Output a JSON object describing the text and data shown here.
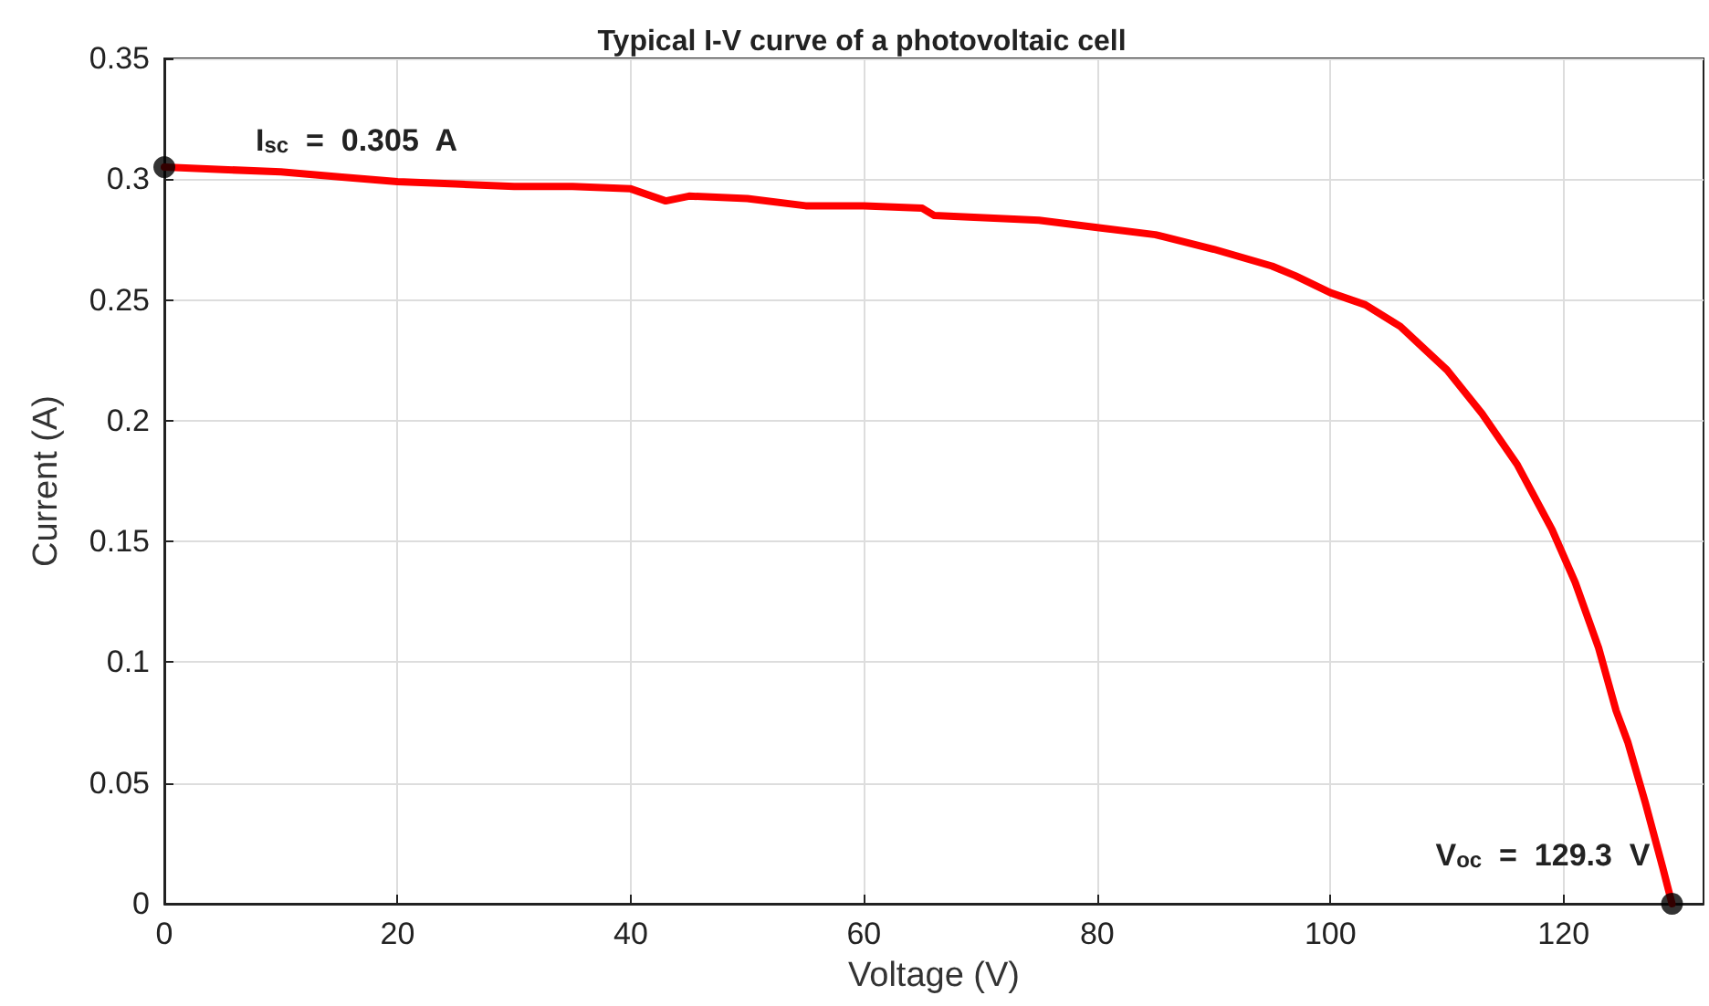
{
  "chart_data": {
    "type": "line",
    "title": "Typical I-V curve of a photovoltaic cell",
    "xlabel": "Voltage (V)",
    "ylabel": "Current (A)",
    "series": [
      {
        "color": "#ff0000",
        "marker": "none",
        "x": [
          0,
          5,
          10,
          15,
          20,
          25,
          30,
          35,
          40,
          43,
          45,
          50,
          55,
          60,
          65,
          66,
          75,
          80,
          85,
          90,
          95,
          97,
          100,
          103,
          106,
          108,
          110,
          113,
          116,
          119,
          121,
          123,
          124.5,
          125.5,
          127,
          128.5,
          129.3
        ],
        "values": [
          0.305,
          0.304,
          0.303,
          0.301,
          0.299,
          0.298,
          0.297,
          0.297,
          0.296,
          0.291,
          0.293,
          0.292,
          0.289,
          0.289,
          0.288,
          0.285,
          0.283,
          0.28,
          0.277,
          0.271,
          0.264,
          0.26,
          0.253,
          0.248,
          0.239,
          0.23,
          0.221,
          0.203,
          0.182,
          0.155,
          0.133,
          0.106,
          0.08,
          0.067,
          0.042,
          0.015,
          0
        ]
      },
      {
        "type": "scatter",
        "marker": "circle",
        "color": "#000000",
        "x": [
          0,
          129.3
        ],
        "values": [
          0.305,
          0
        ]
      }
    ],
    "xlim": [
      0,
      132
    ],
    "xticks": [
      0,
      20,
      40,
      60,
      80,
      100,
      120
    ],
    "ylim": [
      0,
      0.35
    ],
    "yticks": [
      0,
      0.05,
      0.1,
      0.15,
      0.2,
      0.25,
      0.3,
      0.35
    ],
    "grid": true,
    "line_style": "solid",
    "annotations": [
      {
        "text": "I$_{sc}$  =  0.305  A",
        "x": 0,
        "y": 0.305
      },
      {
        "text": "V$_{oc}$  =  129.3  V",
        "x": 129.3,
        "y": 0
      }
    ]
  }
}
